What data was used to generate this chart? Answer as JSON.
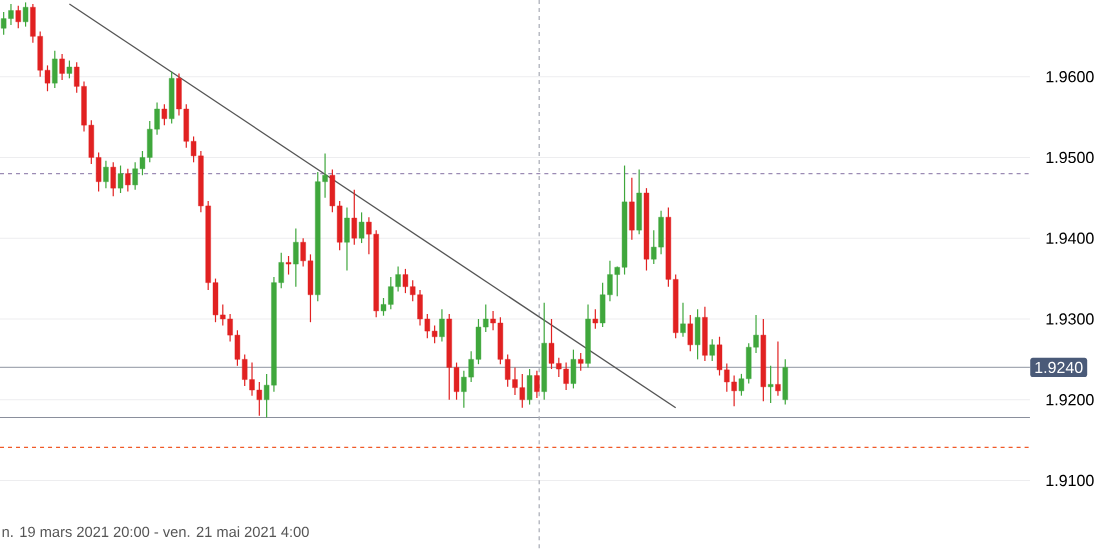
{
  "chart_data": {
    "type": "candlestick",
    "categories": [
      null,
      null,
      null,
      null,
      null,
      null,
      null,
      null,
      null,
      null,
      null,
      null,
      null,
      null,
      null,
      null,
      null,
      null,
      null,
      null,
      null,
      null,
      null,
      null,
      null,
      null,
      null,
      null,
      null,
      null,
      null,
      null,
      null,
      null,
      null,
      null,
      null,
      null,
      null,
      null,
      null,
      null,
      null,
      null,
      null,
      null,
      null,
      null,
      null,
      null,
      null,
      null,
      null,
      null,
      null,
      null,
      null,
      null,
      null,
      null,
      null,
      null,
      null,
      null,
      null,
      null,
      null,
      null,
      null,
      null,
      null,
      null,
      null,
      null,
      null,
      null,
      null,
      null,
      null,
      null,
      null,
      null,
      null,
      null,
      null,
      null,
      null,
      null,
      null,
      null,
      null,
      null,
      null,
      null,
      null,
      null,
      null,
      null,
      null,
      null,
      null,
      null,
      null,
      null,
      null,
      null,
      null,
      null,
      null,
      null,
      null,
      null,
      null,
      null,
      null,
      null,
      null,
      null,
      null,
      null,
      null,
      null,
      null,
      null,
      null,
      null,
      null,
      null,
      null,
      null,
      null,
      null,
      null,
      null,
      null,
      null,
      null,
      null,
      null,
      null,
      null
    ],
    "ohlc": [
      [
        1.966,
        1.968,
        1.9652,
        1.9672
      ],
      [
        1.9672,
        1.969,
        1.9664,
        1.9682
      ],
      [
        1.9682,
        1.9688,
        1.966,
        1.9668
      ],
      [
        1.9668,
        1.9692,
        1.9662,
        1.9686
      ],
      [
        1.9686,
        1.969,
        1.9642,
        1.965
      ],
      [
        1.965,
        1.9656,
        1.96,
        1.9608
      ],
      [
        1.9608,
        1.9614,
        1.9582,
        1.9592
      ],
      [
        1.9592,
        1.9632,
        1.9586,
        1.9622
      ],
      [
        1.9622,
        1.9628,
        1.9596,
        1.9604
      ],
      [
        1.9604,
        1.962,
        1.9598,
        1.9612
      ],
      [
        1.9612,
        1.9618,
        1.958,
        1.9588
      ],
      [
        1.9588,
        1.9594,
        1.9532,
        1.954
      ],
      [
        1.954,
        1.9546,
        1.9492,
        1.95
      ],
      [
        1.95,
        1.9506,
        1.9458,
        1.947
      ],
      [
        1.947,
        1.9496,
        1.9462,
        1.9488
      ],
      [
        1.9488,
        1.9494,
        1.9452,
        1.9462
      ],
      [
        1.9462,
        1.949,
        1.9456,
        1.948
      ],
      [
        1.948,
        1.9486,
        1.9458,
        1.9466
      ],
      [
        1.9466,
        1.9494,
        1.946,
        1.9486
      ],
      [
        1.9486,
        1.9508,
        1.9478,
        1.95
      ],
      [
        1.95,
        1.9545,
        1.9494,
        1.9535
      ],
      [
        1.9535,
        1.9568,
        1.9528,
        1.956
      ],
      [
        1.956,
        1.9566,
        1.954,
        1.9548
      ],
      [
        1.9548,
        1.9606,
        1.9542,
        1.9598
      ],
      [
        1.9598,
        1.9604,
        1.9552,
        1.956
      ],
      [
        1.956,
        1.9566,
        1.9512,
        1.952
      ],
      [
        1.952,
        1.9526,
        1.9494,
        1.9502
      ],
      [
        1.9502,
        1.9508,
        1.9432,
        1.944
      ],
      [
        1.944,
        1.9446,
        1.9336,
        1.9345
      ],
      [
        1.9345,
        1.935,
        1.9296,
        1.9305
      ],
      [
        1.9305,
        1.9318,
        1.9292,
        1.93
      ],
      [
        1.93,
        1.9306,
        1.9272,
        1.928
      ],
      [
        1.928,
        1.9286,
        1.9242,
        1.925
      ],
      [
        1.925,
        1.9256,
        1.9217,
        1.9225
      ],
      [
        1.9225,
        1.9246,
        1.9205,
        1.9212
      ],
      [
        1.9212,
        1.9222,
        1.918,
        1.92
      ],
      [
        1.92,
        1.9232,
        1.9178,
        1.9218
      ],
      [
        1.9218,
        1.9352,
        1.921,
        1.9345
      ],
      [
        1.9345,
        1.9382,
        1.9338,
        1.937
      ],
      [
        1.937,
        1.9378,
        1.9355,
        1.9368
      ],
      [
        1.9368,
        1.9412,
        1.934,
        1.9395
      ],
      [
        1.9395,
        1.94,
        1.9365,
        1.9372
      ],
      [
        1.9372,
        1.938,
        1.9296,
        1.933
      ],
      [
        1.933,
        1.9482,
        1.9322,
        1.947
      ],
      [
        1.947,
        1.9505,
        1.945,
        1.9478
      ],
      [
        1.9478,
        1.9485,
        1.9432,
        1.944
      ],
      [
        1.944,
        1.9446,
        1.9385,
        1.9395
      ],
      [
        1.9395,
        1.9438,
        1.936,
        1.9425
      ],
      [
        1.9425,
        1.946,
        1.9392,
        1.94
      ],
      [
        1.94,
        1.9432,
        1.9394,
        1.942
      ],
      [
        1.942,
        1.9426,
        1.938,
        1.9405
      ],
      [
        1.9405,
        1.941,
        1.9302,
        1.931
      ],
      [
        1.931,
        1.9326,
        1.9304,
        1.9318
      ],
      [
        1.9318,
        1.9352,
        1.9312,
        1.934
      ],
      [
        1.934,
        1.9365,
        1.9334,
        1.9355
      ],
      [
        1.9355,
        1.9362,
        1.9332,
        1.934
      ],
      [
        1.934,
        1.9348,
        1.9322,
        1.933
      ],
      [
        1.933,
        1.9336,
        1.9292,
        1.93
      ],
      [
        1.93,
        1.9306,
        1.9276,
        1.9285
      ],
      [
        1.9285,
        1.9292,
        1.927,
        1.9278
      ],
      [
        1.9278,
        1.9312,
        1.9272,
        1.93
      ],
      [
        1.93,
        1.9306,
        1.92,
        1.924
      ],
      [
        1.924,
        1.9246,
        1.92,
        1.921
      ],
      [
        1.921,
        1.9236,
        1.919,
        1.9228
      ],
      [
        1.9228,
        1.926,
        1.9222,
        1.925
      ],
      [
        1.925,
        1.93,
        1.9244,
        1.929
      ],
      [
        1.929,
        1.9318,
        1.9284,
        1.93
      ],
      [
        1.93,
        1.931,
        1.9286,
        1.9295
      ],
      [
        1.9295,
        1.9302,
        1.9244,
        1.925
      ],
      [
        1.925,
        1.9256,
        1.9216,
        1.9225
      ],
      [
        1.9225,
        1.924,
        1.9206,
        1.9215
      ],
      [
        1.9215,
        1.9232,
        1.919,
        1.92
      ],
      [
        1.92,
        1.9238,
        1.9194,
        1.923
      ],
      [
        1.923,
        1.9236,
        1.9202,
        1.921
      ],
      [
        1.921,
        1.932,
        1.92,
        1.927
      ],
      [
        1.927,
        1.93,
        1.9238,
        1.9245
      ],
      [
        1.9245,
        1.9252,
        1.9228,
        1.9238
      ],
      [
        1.9238,
        1.9246,
        1.9212,
        1.922
      ],
      [
        1.922,
        1.9262,
        1.9214,
        1.925
      ],
      [
        1.925,
        1.9258,
        1.9236,
        1.9245
      ],
      [
        1.9245,
        1.9318,
        1.924,
        1.93
      ],
      [
        1.93,
        1.9312,
        1.9288,
        1.9295
      ],
      [
        1.9295,
        1.9345,
        1.929,
        1.933
      ],
      [
        1.933,
        1.9372,
        1.9322,
        1.9355
      ],
      [
        1.9355,
        1.9365,
        1.9328,
        1.9364
      ],
      [
        1.9364,
        1.949,
        1.9355,
        1.9445
      ],
      [
        1.9445,
        1.9475,
        1.9398,
        1.941
      ],
      [
        1.941,
        1.9485,
        1.9405,
        1.9456
      ],
      [
        1.9456,
        1.9462,
        1.936,
        1.9374
      ],
      [
        1.9374,
        1.941,
        1.9368,
        1.9389
      ],
      [
        1.9389,
        1.9434,
        1.938,
        1.9426
      ],
      [
        1.9426,
        1.9438,
        1.934,
        1.9349
      ],
      [
        1.9349,
        1.9355,
        1.9276,
        1.9283
      ],
      [
        1.9283,
        1.932,
        1.9278,
        1.9294
      ],
      [
        1.9294,
        1.9305,
        1.926,
        1.9268
      ],
      [
        1.9268,
        1.9312,
        1.925,
        1.9302
      ],
      [
        1.9302,
        1.9315,
        1.9248,
        1.9255
      ],
      [
        1.9255,
        1.9275,
        1.9248,
        1.9268
      ],
      [
        1.9268,
        1.9278,
        1.923,
        1.9237
      ],
      [
        1.9237,
        1.9245,
        1.921,
        1.9222
      ],
      [
        1.9222,
        1.923,
        1.9192,
        1.9211
      ],
      [
        1.9211,
        1.9232,
        1.9205,
        1.9226
      ],
      [
        1.9226,
        1.927,
        1.922,
        1.9265
      ],
      [
        1.9265,
        1.9305,
        1.9258,
        1.928
      ],
      [
        1.928,
        1.93,
        1.9198,
        1.9216
      ],
      [
        1.9216,
        1.9242,
        1.9196,
        1.9219
      ],
      [
        1.9219,
        1.9272,
        1.9205,
        1.9211
      ],
      [
        1.92,
        1.925,
        1.9194,
        1.924
      ],
      null,
      null,
      null,
      null,
      null,
      null,
      null,
      null,
      null,
      null,
      null,
      null,
      null,
      null,
      null,
      null,
      null,
      null,
      null,
      null,
      null,
      null,
      null,
      null,
      null,
      null,
      null,
      null,
      null,
      null,
      null,
      null,
      null
    ],
    "colors": [
      "#3fa73c",
      "#3fa73c",
      "#e12121",
      "#3fa73c",
      "#e12121",
      "#e12121",
      "#e12121",
      "#3fa73c",
      "#e12121",
      "#3fa73c",
      "#e12121",
      "#e12121",
      "#e12121",
      "#e12121",
      "#3fa73c",
      "#e12121",
      "#3fa73c",
      "#e12121",
      "#3fa73c",
      "#3fa73c",
      "#3fa73c",
      "#3fa73c",
      "#e12121",
      "#3fa73c",
      "#e12121",
      "#e12121",
      "#e12121",
      "#e12121",
      "#e12121",
      "#e12121",
      "#e12121",
      "#e12121",
      "#e12121",
      "#e12121",
      "#e12121",
      "#e12121",
      "#3fa73c",
      "#3fa73c",
      "#3fa73c",
      "#e12121",
      "#3fa73c",
      "#e12121",
      "#e12121",
      "#3fa73c",
      "#3fa73c",
      "#e12121",
      "#e12121",
      "#3fa73c",
      "#e12121",
      "#3fa73c",
      "#e12121",
      "#e12121",
      "#3fa73c",
      "#3fa73c",
      "#3fa73c",
      "#e12121",
      "#e12121",
      "#e12121",
      "#e12121",
      "#e12121",
      "#3fa73c",
      "#e12121",
      "#e12121",
      "#3fa73c",
      "#3fa73c",
      "#3fa73c",
      "#3fa73c",
      "#e12121",
      "#e12121",
      "#e12121",
      "#e12121",
      "#e12121",
      "#3fa73c",
      "#e12121",
      "#3fa73c",
      "#e12121",
      "#e12121",
      "#e12121",
      "#3fa73c",
      "#e12121",
      "#3fa73c",
      "#e12121",
      "#3fa73c",
      "#3fa73c",
      "#3fa73c",
      "#3fa73c",
      "#e12121",
      "#3fa73c",
      "#e12121",
      "#3fa73c",
      "#3fa73c",
      "#e12121",
      "#e12121",
      "#3fa73c",
      "#e12121",
      "#3fa73c",
      "#e12121",
      "#3fa73c",
      "#e12121",
      "#e12121",
      "#e12121",
      "#3fa73c",
      "#3fa73c",
      "#3fa73c",
      "#e12121",
      "#3fa73c",
      "#e12121",
      "#3fa73c",
      null,
      null,
      null,
      null,
      null,
      null,
      null,
      null,
      null,
      null,
      null,
      null,
      null,
      null,
      null,
      null,
      null,
      null,
      null,
      null,
      null,
      null,
      null,
      null,
      null,
      null,
      null,
      null,
      null,
      null,
      null,
      null,
      null
    ],
    "series": [
      {
        "type": "line",
        "values": [
          null,
          null,
          null,
          null,
          null,
          null,
          null,
          null,
          null,
          1.969,
          null,
          null,
          null,
          null,
          null,
          null,
          null,
          null,
          null,
          null,
          null,
          null,
          null,
          null,
          null,
          null,
          null,
          null,
          null,
          null,
          null,
          null,
          null,
          null,
          null,
          null,
          null,
          null,
          null,
          null,
          null,
          null,
          null,
          null,
          null,
          null,
          null,
          null,
          null,
          null,
          null,
          null,
          null,
          null,
          null,
          null,
          null,
          null,
          null,
          null,
          null,
          null,
          null,
          null,
          null,
          null,
          null,
          null,
          null,
          null,
          null,
          null,
          null,
          null,
          null,
          null,
          null,
          null,
          null,
          null,
          null,
          null,
          null,
          null,
          null,
          null,
          null,
          null,
          null,
          null,
          null,
          null,
          1.919,
          null,
          null,
          null,
          null,
          null,
          null,
          null,
          null,
          null,
          null,
          null,
          null,
          null,
          null,
          null,
          null,
          null,
          null,
          null,
          null,
          null,
          null,
          null,
          null,
          null,
          null,
          null,
          null,
          null,
          null,
          null,
          null,
          null,
          null,
          null,
          null,
          null,
          null,
          null,
          null,
          null,
          null,
          null,
          null,
          null,
          null,
          null,
          null
        ],
        "color": "#555555"
      }
    ],
    "ylim": [
      1.9016,
      1.9695
    ],
    "yticks": [
      {
        "value": 1.91,
        "label": "1.9100"
      },
      {
        "value": 1.92,
        "label": "1.9200"
      },
      {
        "value": 1.93,
        "label": "1.9300"
      },
      {
        "value": 1.94,
        "label": "1.9400"
      },
      {
        "value": 1.95,
        "label": "1.9500"
      },
      {
        "value": 1.96,
        "label": "1.9600"
      }
    ],
    "tick_labels": "y",
    "grid": "y",
    "ref_lines": [
      {
        "axis": "y",
        "value": 1.948,
        "color": "#9b8bb4",
        "line_style": "dashed"
      },
      {
        "axis": "y",
        "value": 1.9178,
        "color": "#8a8f9c",
        "line_style": "solid"
      },
      {
        "axis": "y",
        "value": 1.924,
        "label": "1.9240",
        "color": "#a5aab4",
        "line_style": "solid"
      },
      {
        "axis": "y",
        "value": 1.9141,
        "color": "#f05a28",
        "line_style": "dashed"
      }
    ],
    "annotations": [
      "n. 19 mars 2021 20:00 - ven. 21 mai 2021 4:00"
    ]
  }
}
